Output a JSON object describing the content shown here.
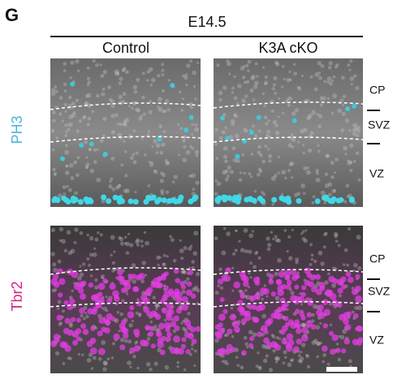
{
  "panel_label": "G",
  "condition": "E14.5",
  "columns": [
    "Control",
    "K3A cKO"
  ],
  "rows": [
    {
      "marker": "PH3",
      "layers": [
        "CP",
        "SVZ",
        "VZ"
      ]
    },
    {
      "marker": "Tbr2",
      "layers": [
        "CP",
        "SVZ",
        "VZ"
      ]
    }
  ]
}
